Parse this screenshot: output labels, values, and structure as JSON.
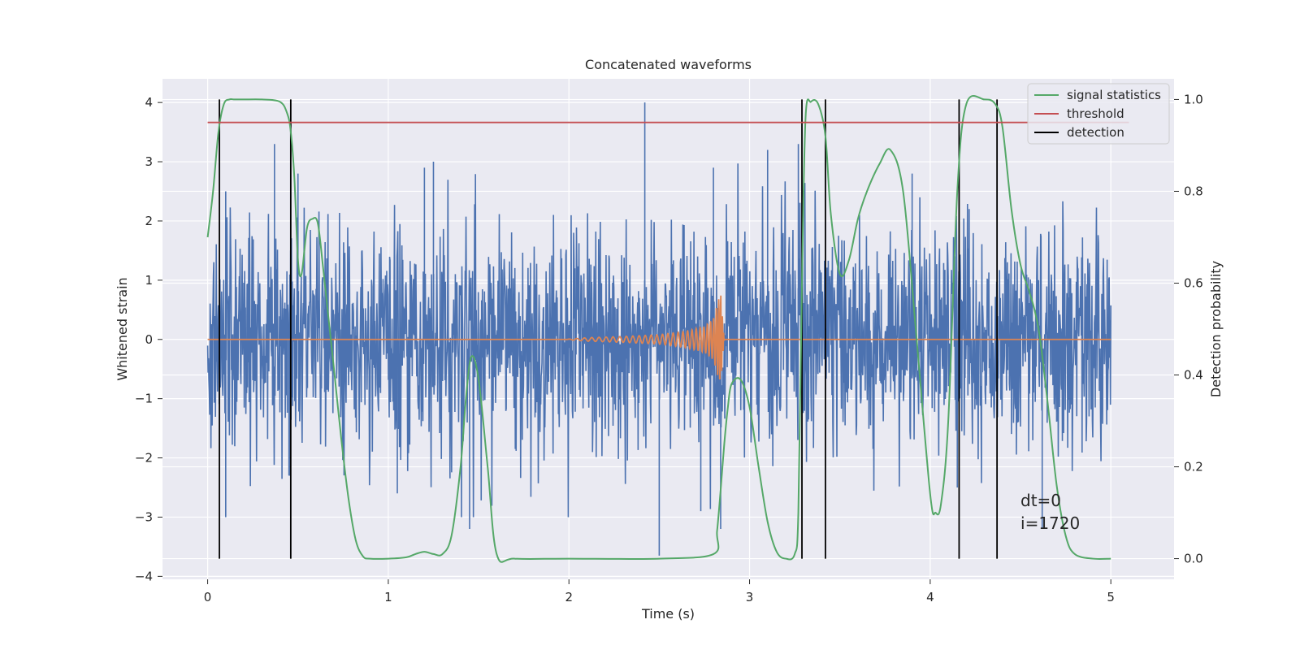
{
  "chart_data": {
    "type": "line",
    "title": "Concatenated waveforms",
    "xlabel": "Time (s)",
    "ylabel_left": "Whitened strain",
    "ylabel_right": "Detection probability",
    "xlim": [
      -0.25,
      5.35
    ],
    "ylim_left": [
      -4.05,
      4.4
    ],
    "ylim_right": [
      -0.045,
      1.045
    ],
    "x_ticks": [
      0,
      1,
      2,
      3,
      4,
      5
    ],
    "y_left_ticks": [
      -4,
      -3,
      -2,
      -1,
      0,
      1,
      2,
      3,
      4
    ],
    "y_left_tick_labels": [
      "−4",
      "−3",
      "−2",
      "−1",
      "0",
      "1",
      "2",
      "3",
      "4"
    ],
    "y_right_ticks": [
      0.0,
      0.2,
      0.4,
      0.6,
      0.8,
      1.0
    ],
    "y_right_tick_labels": [
      "0.0",
      "0.2",
      "0.4",
      "0.6",
      "0.8",
      "1.0"
    ],
    "grid": true,
    "legend_position": "top-right",
    "colors": {
      "background": "#eaeaf2",
      "grid": "#ffffff",
      "strain": "#4c72b0",
      "injection": "#dd8452",
      "signal_statistics": "#55a868",
      "threshold": "#c44e52",
      "detection": "#000000"
    },
    "series": [
      {
        "name": "whitened strain (noise)",
        "axis": "left",
        "color": "#4c72b0",
        "x_range": [
          0,
          5
        ],
        "typical_amplitude": 1.0,
        "envelope_upper_peaks": [
          [
            0.1,
            2.5
          ],
          [
            0.37,
            3.3
          ],
          [
            0.5,
            2.8
          ],
          [
            1.2,
            2.9
          ],
          [
            1.25,
            3.0
          ],
          [
            2.42,
            4.0
          ],
          [
            2.8,
            2.9
          ],
          [
            3.1,
            3.2
          ],
          [
            3.27,
            3.3
          ],
          [
            3.9,
            2.8
          ]
        ],
        "envelope_lower_peaks": [
          [
            0.1,
            -3.0
          ],
          [
            0.45,
            -2.3
          ],
          [
            1.05,
            -2.6
          ],
          [
            1.45,
            -3.2
          ],
          [
            2.5,
            -3.65
          ],
          [
            2.73,
            -2.9
          ],
          [
            2.84,
            -3.2
          ],
          [
            4.15,
            -2.5
          ],
          [
            4.62,
            -3.2
          ]
        ]
      },
      {
        "name": "injected chirp",
        "axis": "left",
        "color": "#dd8452",
        "x": [
          0,
          1.98,
          2.1,
          2.3,
          2.5,
          2.65,
          2.75,
          2.8,
          2.84,
          2.86,
          5
        ],
        "envelope": [
          0,
          0,
          0.03,
          0.05,
          0.08,
          0.14,
          0.22,
          0.35,
          0.8,
          0.0,
          0
        ]
      },
      {
        "name": "signal statistics",
        "axis": "right",
        "color": "#55a868",
        "x": [
          0,
          0.03,
          0.06,
          0.09,
          0.12,
          0.15,
          0.2,
          0.3,
          0.4,
          0.44,
          0.46,
          0.48,
          0.5,
          0.52,
          0.55,
          0.58,
          0.61,
          0.64,
          0.67,
          0.7,
          0.74,
          0.78,
          0.82,
          0.86,
          0.9,
          1.0,
          1.1,
          1.15,
          1.2,
          1.25,
          1.3,
          1.35,
          1.4,
          1.43,
          1.46,
          1.5,
          1.55,
          1.6,
          1.7,
          2.0,
          2.5,
          2.8,
          2.82,
          2.84,
          2.86,
          2.88,
          2.9,
          2.95,
          3.0,
          3.05,
          3.1,
          3.15,
          3.2,
          3.25,
          3.27,
          3.29,
          3.31,
          3.34,
          3.38,
          3.42,
          3.45,
          3.5,
          3.55,
          3.6,
          3.65,
          3.72,
          3.78,
          3.85,
          3.92,
          4.0,
          4.03,
          4.06,
          4.1,
          4.15,
          4.2,
          4.3,
          4.36,
          4.4,
          4.45,
          4.5,
          4.55,
          4.6,
          4.65,
          4.7,
          4.75,
          4.8,
          4.9,
          5.0
        ],
        "values": [
          0.7,
          0.8,
          0.93,
          0.99,
          1.0,
          1.0,
          1.0,
          1.0,
          0.995,
          0.97,
          0.93,
          0.83,
          0.65,
          0.62,
          0.72,
          0.74,
          0.73,
          0.63,
          0.52,
          0.41,
          0.26,
          0.13,
          0.04,
          0.005,
          0.0,
          0.0,
          0.003,
          0.01,
          0.015,
          0.01,
          0.01,
          0.05,
          0.2,
          0.35,
          0.44,
          0.39,
          0.2,
          0.01,
          0.0,
          0.0,
          0.0,
          0.01,
          0.06,
          0.15,
          0.25,
          0.33,
          0.38,
          0.39,
          0.33,
          0.2,
          0.08,
          0.015,
          0.0,
          0.01,
          0.1,
          0.6,
          0.96,
          0.995,
          0.99,
          0.92,
          0.75,
          0.62,
          0.65,
          0.74,
          0.8,
          0.86,
          0.89,
          0.8,
          0.5,
          0.14,
          0.1,
          0.12,
          0.3,
          0.8,
          0.99,
          1.0,
          0.99,
          0.94,
          0.76,
          0.64,
          0.58,
          0.5,
          0.34,
          0.16,
          0.05,
          0.01,
          0.0,
          0.0
        ]
      },
      {
        "name": "threshold",
        "axis": "right",
        "color": "#c44e52",
        "x": [
          0,
          5.1
        ],
        "values": [
          0.95,
          0.95
        ]
      }
    ],
    "detections": [
      0.065,
      0.46,
      3.29,
      3.42,
      4.16,
      4.37
    ],
    "detection_range": [
      0.0,
      1.0
    ],
    "legend": [
      {
        "label": "signal statistics",
        "color": "#55a868"
      },
      {
        "label": "threshold",
        "color": "#c44e52"
      },
      {
        "label": "detection",
        "color": "#000000"
      }
    ],
    "annotation": {
      "line1": "dt=0",
      "line2": "i=1720",
      "x": 4.5,
      "y_right": 0.1
    }
  }
}
